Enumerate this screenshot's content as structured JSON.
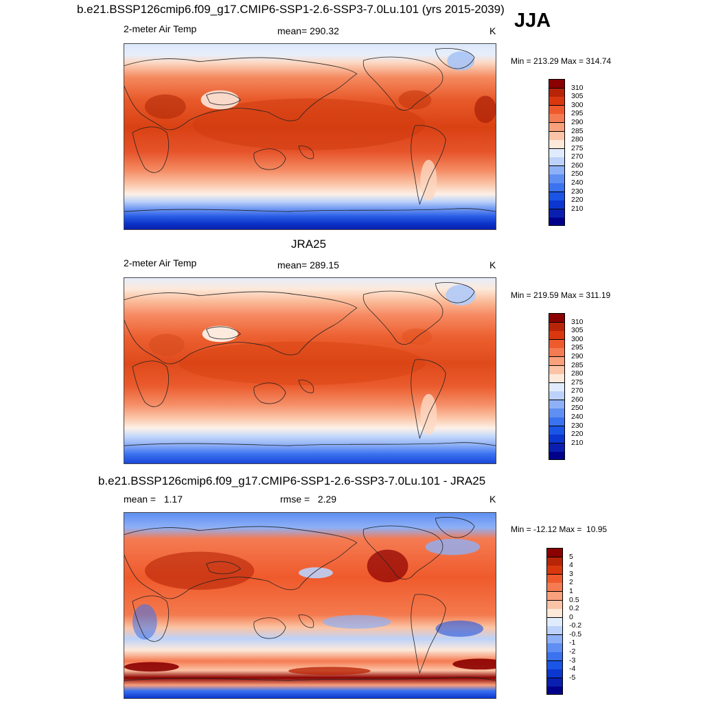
{
  "season": "JJA",
  "panels": [
    {
      "title": "b.e21.BSSP126cmip6.f09_g17.CMIP6-SSP1-2.6-SSP3-7.0Lu.101 (yrs 2015-2039)",
      "left_label": "2-meter Air Temp",
      "center_label": "mean= 290.32",
      "units": "K",
      "minmax": "Min = 213.29 Max = 314.74",
      "legend_colors": [
        "#00008b",
        "#0a1fb0",
        "#0b36d0",
        "#1a55e6",
        "#3a72f0",
        "#5f8ff2",
        "#8eb0f6",
        "#bcd2fa",
        "#e0ecfd",
        "#fde9da",
        "#fcc4a6",
        "#f9a07c",
        "#f57b52",
        "#ef5a2c",
        "#d9380f",
        "#b82407",
        "#8b0000"
      ],
      "legend_labels": [
        "310",
        "305",
        "300",
        "295",
        "290",
        "285",
        "280",
        "275",
        "270",
        "260",
        "250",
        "240",
        "230",
        "220",
        "210"
      ]
    },
    {
      "title": "JRA25",
      "left_label": "2-meter Air Temp",
      "center_label": "mean= 289.15",
      "units": "K",
      "minmax": "Min = 219.59 Max = 311.19",
      "legend_colors": [
        "#00008b",
        "#0a1fb0",
        "#0b36d0",
        "#1a55e6",
        "#3a72f0",
        "#5f8ff2",
        "#8eb0f6",
        "#bcd2fa",
        "#e0ecfd",
        "#fde9da",
        "#fcc4a6",
        "#f9a07c",
        "#f57b52",
        "#ef5a2c",
        "#d9380f",
        "#b82407",
        "#8b0000"
      ],
      "legend_labels": [
        "310",
        "305",
        "300",
        "295",
        "290",
        "285",
        "280",
        "275",
        "270",
        "260",
        "250",
        "240",
        "230",
        "220",
        "210"
      ]
    },
    {
      "title": "b.e21.BSSP126cmip6.f09_g17.CMIP6-SSP1-2.6-SSP3-7.0Lu.101 - JRA25",
      "left_label": "mean =   1.17",
      "center_label": "rmse =   2.29",
      "units": "K",
      "minmax": "Min = -12.12 Max =  10.95",
      "legend_colors": [
        "#00008b",
        "#0a1fb0",
        "#0b36d0",
        "#1a55e6",
        "#3a72f0",
        "#5f8ff2",
        "#8eb0f6",
        "#bcd2fa",
        "#e0ecfd",
        "#fde9da",
        "#fcc4a6",
        "#f9a07c",
        "#f57b52",
        "#ef5a2c",
        "#d9380f",
        "#b82407",
        "#8b0000"
      ],
      "legend_labels": [
        "5",
        "4",
        "3",
        "2",
        "1",
        "0.5",
        "0.2",
        "0",
        "-0.2",
        "-0.5",
        "-1",
        "-2",
        "-3",
        "-4",
        "-5"
      ]
    }
  ]
}
